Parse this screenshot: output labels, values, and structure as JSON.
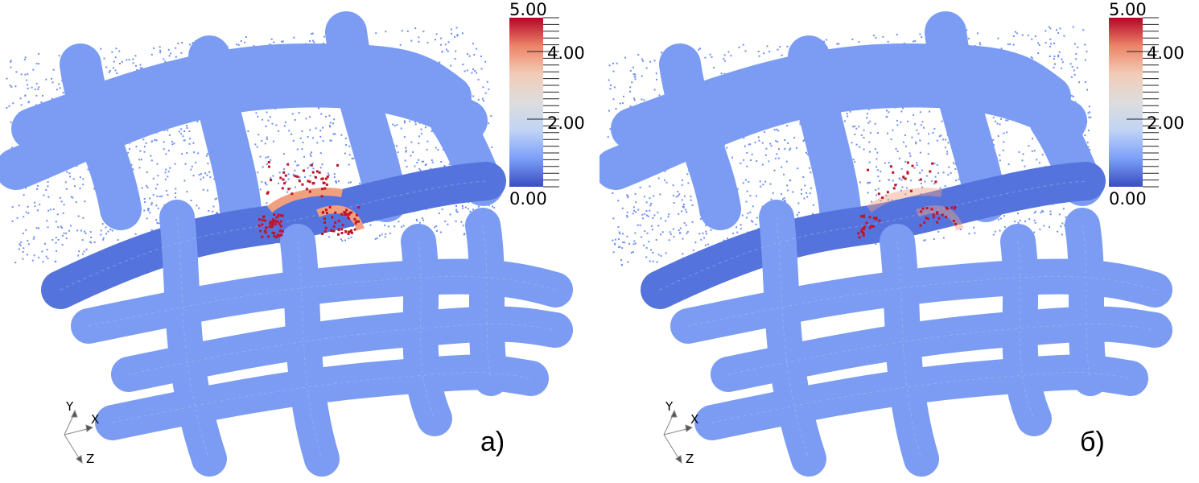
{
  "colormap": {
    "name": "Cool to Warm",
    "stops": [
      "#3b4cc0",
      "#7b9ff9",
      "#c0d4f5",
      "#dddddd",
      "#f2cbb7",
      "#ee8468",
      "#b40426"
    ]
  },
  "colorbar": {
    "min_label": "0.00",
    "max_label": "5.00",
    "tick_labels": [
      "4.00",
      "2.00"
    ],
    "range": [
      0,
      5
    ]
  },
  "axes": {
    "x": "X",
    "y": "Y",
    "z": "Z"
  },
  "colors": {
    "yarn": "#7b9cf2",
    "yarn_dark": "#5573dc",
    "points": "#6f8ef0",
    "hot": "#c0142a",
    "warm": "#f0a080"
  },
  "panels": [
    {
      "label": "а)",
      "hot_intensity": 1.0
    },
    {
      "label": "б)",
      "hot_intensity": 0.45
    }
  ]
}
